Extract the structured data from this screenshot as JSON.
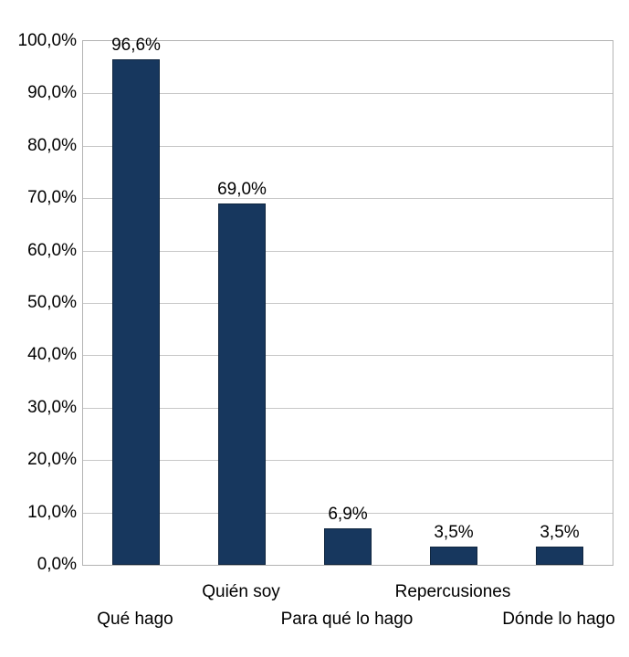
{
  "chart_data": {
    "type": "bar",
    "title": "",
    "xlabel": "",
    "ylabel": "",
    "categories": [
      "Qué hago",
      "Quién soy",
      "Para qué lo hago",
      "Repercusiones",
      "Dónde lo hago"
    ],
    "values": [
      96.6,
      69.0,
      6.9,
      3.5,
      3.5
    ],
    "value_labels": [
      "96,6%",
      "69,0%",
      "6,9%",
      "3,5%",
      "3,5%"
    ],
    "category_label_rows": [
      2,
      1,
      2,
      1,
      2
    ],
    "y_ticks": [
      {
        "value": 0,
        "label": "0,0%"
      },
      {
        "value": 10,
        "label": "10,0%"
      },
      {
        "value": 20,
        "label": "20,0%"
      },
      {
        "value": 30,
        "label": "30,0%"
      },
      {
        "value": 40,
        "label": "40,0%"
      },
      {
        "value": 50,
        "label": "50,0%"
      },
      {
        "value": 60,
        "label": "60,0%"
      },
      {
        "value": 70,
        "label": "70,0%"
      },
      {
        "value": 80,
        "label": "80,0%"
      },
      {
        "value": 90,
        "label": "90,0%"
      },
      {
        "value": 100,
        "label": "100,0%"
      }
    ],
    "ylim": [
      0,
      100
    ],
    "grid": true,
    "legend": "none",
    "bar_color": "#17375e",
    "grid_color": "#c7c7c7",
    "plot_border_color": "#b3b3b3"
  }
}
